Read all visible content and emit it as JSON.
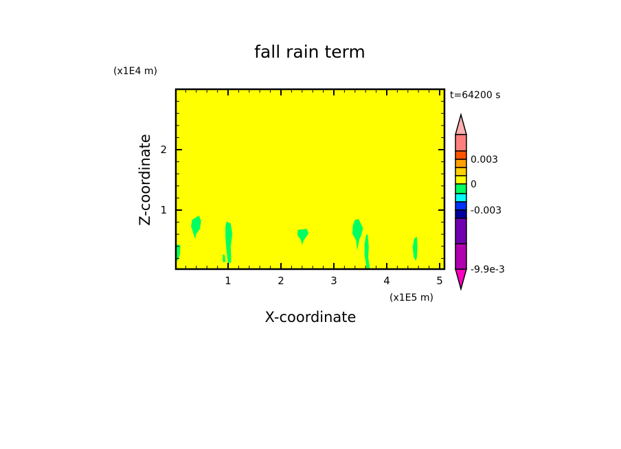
{
  "chart_data": {
    "type": "heatmap",
    "title": "fall rain term",
    "xlabel": "X-coordinate",
    "ylabel": "Z-coordinate",
    "x_unit_label": "(x1E5 m)",
    "y_unit_label": "(x1E4 m)",
    "time_label": "t=64200 s",
    "xlim": [
      0,
      5.12
    ],
    "ylim": [
      0,
      3.0
    ],
    "x_ticks": [
      1,
      2,
      3,
      4,
      5
    ],
    "y_ticks": [
      1,
      2
    ],
    "x_tick_labels": [
      "1",
      "2",
      "3",
      "4",
      "5"
    ],
    "y_tick_labels": [
      "1",
      "2"
    ],
    "minor_tick_step": 0.2,
    "background_color": "#ffff00",
    "colorbar": {
      "levels_top_to_bottom": [
        {
          "color": "#ff7f7f"
        },
        {
          "color": "#ff5500"
        },
        {
          "color": "#ffa000"
        },
        {
          "color": "#ffd000"
        },
        {
          "color": "#ffff00"
        },
        {
          "color": "#00ff60"
        },
        {
          "color": "#00ffff"
        },
        {
          "color": "#0030ff"
        },
        {
          "color": "#0000a0"
        },
        {
          "color": "#7000b0"
        },
        {
          "color": "#b000b0"
        }
      ],
      "boundary_fractions": [
        0,
        0.122,
        0.184,
        0.245,
        0.306,
        0.367,
        0.439,
        0.5,
        0.561,
        0.622,
        0.811,
        1
      ],
      "over_color": "#ffb0b0",
      "under_color": "#ff00c0",
      "labels": [
        {
          "text": "0.003",
          "frac": 0.184
        },
        {
          "text": "0",
          "frac": 0.367
        },
        {
          "text": "-0.003",
          "frac": 0.561
        },
        {
          "text": "-9.9e-3",
          "frac": 1
        }
      ]
    },
    "regions": [
      {
        "level_color": "#00ff60",
        "polygon": [
          [
            0.36,
            0.86
          ],
          [
            0.45,
            0.91
          ],
          [
            0.49,
            0.82
          ],
          [
            0.47,
            0.69
          ],
          [
            0.4,
            0.61
          ],
          [
            0.38,
            0.52
          ],
          [
            0.3,
            0.73
          ],
          [
            0.32,
            0.84
          ]
        ]
      },
      {
        "level_color": "#00ff60",
        "polygon": [
          [
            0.97,
            0.81
          ],
          [
            1.05,
            0.78
          ],
          [
            1.08,
            0.61
          ],
          [
            1.05,
            0.39
          ],
          [
            1.06,
            0.14
          ],
          [
            1.0,
            0.11
          ],
          [
            0.97,
            0.33
          ],
          [
            0.95,
            0.56
          ],
          [
            0.95,
            0.73
          ]
        ]
      },
      {
        "level_color": "#00ff60",
        "polygon": [
          [
            0.9,
            0.27
          ],
          [
            0.94,
            0.25
          ],
          [
            0.95,
            0.14
          ],
          [
            0.9,
            0.14
          ]
        ]
      },
      {
        "level_color": "#00ff60",
        "polygon": [
          [
            2.32,
            0.67
          ],
          [
            2.49,
            0.69
          ],
          [
            2.52,
            0.61
          ],
          [
            2.43,
            0.5
          ],
          [
            2.4,
            0.42
          ],
          [
            2.38,
            0.5
          ],
          [
            2.31,
            0.59
          ]
        ]
      },
      {
        "level_color": "#00ff60",
        "polygon": [
          [
            3.4,
            0.84
          ],
          [
            3.47,
            0.85
          ],
          [
            3.55,
            0.7
          ],
          [
            3.52,
            0.59
          ],
          [
            3.48,
            0.51
          ],
          [
            3.44,
            0.33
          ],
          [
            3.42,
            0.5
          ],
          [
            3.35,
            0.61
          ],
          [
            3.36,
            0.75
          ]
        ]
      },
      {
        "level_color": "#00ff60",
        "polygon": [
          [
            3.61,
            0.59
          ],
          [
            3.64,
            0.6
          ],
          [
            3.66,
            0.39
          ],
          [
            3.65,
            0.22
          ],
          [
            3.68,
            0.02
          ],
          [
            3.62,
            0.02
          ],
          [
            3.58,
            0.27
          ],
          [
            3.58,
            0.44
          ]
        ]
      },
      {
        "level_color": "#00ff60",
        "polygon": [
          [
            4.52,
            0.53
          ],
          [
            4.57,
            0.56
          ],
          [
            4.58,
            0.39
          ],
          [
            4.57,
            0.22
          ],
          [
            4.55,
            0.16
          ],
          [
            4.51,
            0.22
          ],
          [
            4.49,
            0.39
          ]
        ]
      },
      {
        "level_color": "#00ff60",
        "polygon": [
          [
            0.01,
            0.43
          ],
          [
            0.1,
            0.42
          ],
          [
            0.09,
            0.27
          ],
          [
            0.05,
            0.16
          ],
          [
            0.01,
            0.18
          ]
        ]
      }
    ]
  }
}
